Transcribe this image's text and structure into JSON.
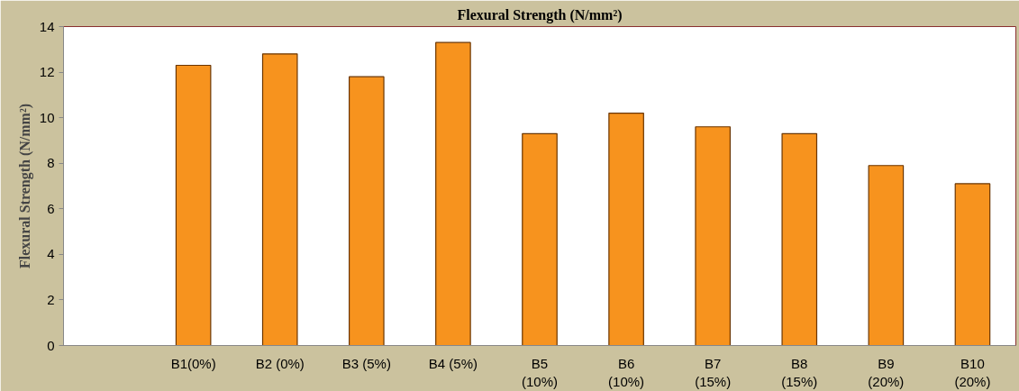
{
  "chart_data": {
    "type": "bar",
    "title": "Flexural Strength (N/mm²)",
    "ylabel": "Flexural Strength (N/mm²)",
    "categories": [
      null,
      "B1(0%)",
      "B2 (0%)",
      "B3 (5%)",
      "B4 (5%)",
      "B5 (10%)",
      "B6 (10%)",
      "B7 (15%)",
      "B8 (15%)",
      "B9 (20%)",
      "B10 (20%)"
    ],
    "values": [
      null,
      12.3,
      12.8,
      11.8,
      13.3,
      9.3,
      10.2,
      9.6,
      9.3,
      7.9,
      7.1
    ],
    "color": "#f7931e",
    "ylim": [
      0,
      14
    ],
    "yticks": [
      0,
      2,
      4,
      6,
      8,
      10,
      12,
      14
    ],
    "grid": false
  }
}
